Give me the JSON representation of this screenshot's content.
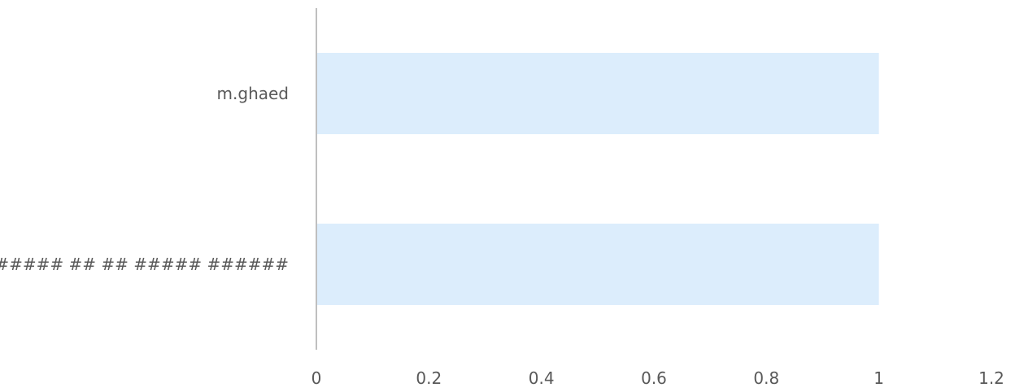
{
  "chart_data": {
    "type": "bar",
    "orientation": "horizontal",
    "categories": [
      "m.ghaed",
      "##### ## ## ##### ######"
    ],
    "values": [
      1,
      1
    ],
    "xlim": [
      0,
      1.2
    ],
    "xticks": [
      "0",
      "0.2",
      "0.4",
      "0.6",
      "0.8",
      "1",
      "1.2"
    ],
    "title": "",
    "xlabel": "",
    "ylabel": "",
    "grid": false,
    "legend": "none",
    "colors": {
      "bar": "#dcedfc",
      "axis": "#bfbfbf",
      "text": "#595959"
    }
  }
}
